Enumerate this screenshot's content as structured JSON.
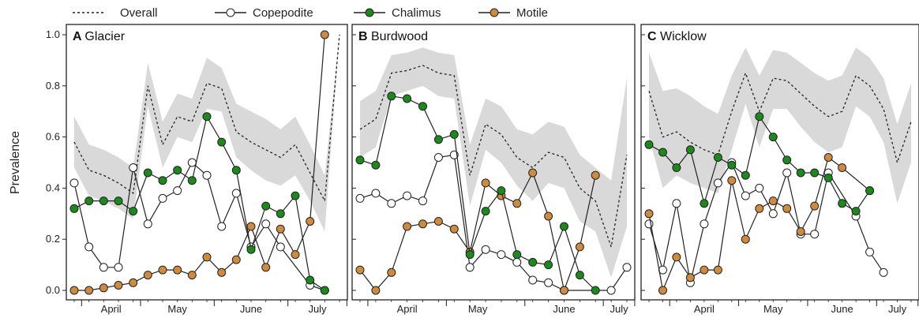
{
  "chart_data": {
    "type": "line",
    "ylabel": "Prevalence",
    "ylim": [
      0,
      1
    ],
    "yticks": [
      "0.0",
      "0.2",
      "0.4",
      "0.6",
      "0.8",
      "1.0"
    ],
    "month_labels": [
      "April",
      "May",
      "June",
      "July"
    ],
    "legend": {
      "placement": "top",
      "entries": [
        {
          "key": "overall",
          "label": "Overall",
          "style": "dotted"
        },
        {
          "key": "copepodite",
          "label": "Copepodite",
          "fill": "#ffffff"
        },
        {
          "key": "chalimus",
          "label": "Chalimus",
          "fill": "#1a8a1a"
        },
        {
          "key": "motile",
          "label": "Motile",
          "fill": "#d08a3c"
        }
      ]
    },
    "colors": {
      "copepodite": "#ffffff",
      "chalimus": "#1a8a1a",
      "motile": "#d08a3c",
      "band": "#d9d9d9",
      "line": "#222222"
    },
    "panels": [
      {
        "letter": "A",
        "name": "Glacier",
        "n": 19,
        "month_ticks": [
          0.5,
          4.5,
          9.5,
          14.5,
          18.5
        ],
        "month_label_pos": [
          2.5,
          7,
          12,
          16.5
        ],
        "overall": [
          0.58,
          0.47,
          0.45,
          0.42,
          0.38,
          0.8,
          0.57,
          0.68,
          0.66,
          0.81,
          0.79,
          0.62,
          0.58,
          0.55,
          0.52,
          0.57,
          0.46,
          0.35,
          1.0
        ],
        "band_upper": [
          0.68,
          0.57,
          0.55,
          0.52,
          0.48,
          0.89,
          0.66,
          0.77,
          0.75,
          0.91,
          0.87,
          0.73,
          0.7,
          0.67,
          0.63,
          0.68,
          0.57,
          0.45,
          1.0
        ],
        "band_lower": [
          0.48,
          0.37,
          0.35,
          0.32,
          0.28,
          0.72,
          0.48,
          0.6,
          0.58,
          0.71,
          0.7,
          0.52,
          0.47,
          0.43,
          0.41,
          0.45,
          0.35,
          0.23,
          1.0
        ],
        "copepodite": [
          0.42,
          0.17,
          0.09,
          0.09,
          0.48,
          0.26,
          0.36,
          0.39,
          0.5,
          0.45,
          0.25,
          0.38,
          0.17,
          0.26,
          0.17,
          0.02,
          0.0
        ],
        "copepodite_x": [
          0,
          1,
          2,
          3,
          4,
          5,
          6,
          7,
          8,
          9,
          10,
          11,
          12,
          13,
          14,
          16,
          17
        ],
        "chalimus": [
          0.32,
          0.35,
          0.35,
          0.35,
          0.31,
          0.46,
          0.43,
          0.47,
          0.43,
          0.68,
          0.58,
          0.47,
          0.16,
          0.33,
          0.3,
          0.37,
          0.04,
          0.0
        ],
        "chalimus_x": [
          0,
          1,
          2,
          3,
          4,
          5,
          6,
          7,
          8,
          9,
          10,
          11,
          12,
          13,
          14,
          15,
          16,
          17
        ],
        "motile": [
          0.0,
          0.0,
          0.01,
          0.02,
          0.03,
          0.06,
          0.08,
          0.08,
          0.06,
          0.13,
          0.07,
          0.12,
          0.25,
          0.09,
          0.24,
          0.14,
          0.27,
          1.0
        ],
        "motile_x": [
          0,
          1,
          2,
          3,
          4,
          5,
          6,
          7,
          8,
          9,
          10,
          11,
          12,
          13,
          14,
          15,
          16,
          17
        ]
      },
      {
        "letter": "B",
        "name": "Burdwood",
        "n": 18,
        "month_ticks": [
          0.5,
          5.5,
          10.5,
          15.5,
          17.5
        ],
        "month_label_pos": [
          3,
          7.5,
          13,
          16.5
        ],
        "overall": [
          0.63,
          0.67,
          0.85,
          0.86,
          0.88,
          0.85,
          0.84,
          0.45,
          0.65,
          0.61,
          0.52,
          0.48,
          0.54,
          0.52,
          0.4,
          0.35,
          0.17,
          0.53
        ],
        "band_upper": [
          0.74,
          0.78,
          0.92,
          0.93,
          0.95,
          0.93,
          0.92,
          0.57,
          0.75,
          0.72,
          0.63,
          0.61,
          0.66,
          0.64,
          0.53,
          0.48,
          0.43,
          0.83
        ],
        "band_lower": [
          0.52,
          0.56,
          0.76,
          0.78,
          0.8,
          0.76,
          0.75,
          0.33,
          0.55,
          0.5,
          0.41,
          0.35,
          0.42,
          0.4,
          0.27,
          0.23,
          0.05,
          0.25
        ],
        "copepodite": [
          0.36,
          0.38,
          0.34,
          0.37,
          0.35,
          0.52,
          0.53,
          0.09,
          0.16,
          0.14,
          0.11,
          0.04,
          0.03,
          0.0,
          0.0,
          0.09
        ],
        "copepodite_x": [
          0,
          1,
          2,
          3,
          4,
          5,
          6,
          7,
          8,
          9,
          10,
          11,
          12,
          13,
          16,
          17
        ],
        "chalimus": [
          0.51,
          0.49,
          0.76,
          0.75,
          0.72,
          0.59,
          0.61,
          0.14,
          0.31,
          0.39,
          0.14,
          0.11,
          0.1,
          0.25,
          0.06,
          0.0
        ],
        "chalimus_x": [
          0,
          1,
          2,
          3,
          4,
          5,
          6,
          7,
          8,
          9,
          10,
          11,
          12,
          13,
          14,
          15
        ],
        "motile": [
          0.08,
          0.0,
          0.07,
          0.25,
          0.26,
          0.27,
          0.24,
          0.15,
          0.42,
          0.37,
          0.34,
          0.46,
          0.29,
          0.0,
          0.17,
          0.45
        ],
        "motile_x": [
          0,
          1,
          2,
          3,
          4,
          5,
          6,
          7,
          8,
          9,
          10,
          11,
          12,
          13,
          14,
          15
        ]
      },
      {
        "letter": "C",
        "name": "Wicklow",
        "n": 20,
        "month_ticks": [
          1.5,
          6.5,
          11.5,
          16.5,
          19.5
        ],
        "month_label_pos": [
          4,
          9,
          14,
          18
        ],
        "overall": [
          0.78,
          0.6,
          0.62,
          0.58,
          0.55,
          0.53,
          0.7,
          0.85,
          0.7,
          0.83,
          0.82,
          0.77,
          0.72,
          0.68,
          0.7,
          0.84,
          0.8,
          0.71,
          0.5,
          0.66
        ],
        "band_upper": [
          0.93,
          0.78,
          0.79,
          0.76,
          0.72,
          0.69,
          0.84,
          0.95,
          0.84,
          0.94,
          0.93,
          0.89,
          0.85,
          0.82,
          0.84,
          0.95,
          0.91,
          0.83,
          0.65,
          0.81
        ],
        "band_lower": [
          0.6,
          0.4,
          0.45,
          0.42,
          0.4,
          0.38,
          0.55,
          0.73,
          0.56,
          0.71,
          0.71,
          0.64,
          0.58,
          0.54,
          0.56,
          0.72,
          0.68,
          0.58,
          0.34,
          0.5
        ],
        "copepodite": [
          0.26,
          0.08,
          0.34,
          0.03,
          0.26,
          0.42,
          0.5,
          0.37,
          0.4,
          0.3,
          0.46,
          0.22,
          0.22,
          0.46,
          0.29,
          0.15,
          0.07
        ],
        "copepodite_x": [
          0,
          1,
          2,
          3,
          4,
          5,
          6,
          7,
          8,
          9,
          10,
          11,
          12,
          13,
          15,
          16,
          17
        ],
        "chalimus": [
          0.57,
          0.54,
          0.48,
          0.55,
          0.34,
          0.52,
          0.49,
          0.45,
          0.68,
          0.6,
          0.51,
          0.46,
          0.46,
          0.44,
          0.34,
          0.31,
          0.39
        ],
        "chalimus_x": [
          0,
          1,
          2,
          3,
          4,
          5,
          6,
          7,
          8,
          9,
          10,
          11,
          12,
          13,
          14,
          15,
          16
        ],
        "motile": [
          0.3,
          0.0,
          0.13,
          0.05,
          0.08,
          0.08,
          0.43,
          0.2,
          0.32,
          0.35,
          0.32,
          0.23,
          0.33,
          0.52,
          0.48,
          0.39
        ],
        "motile_x": [
          0,
          1,
          2,
          3,
          4,
          5,
          6,
          7,
          8,
          9,
          10,
          11,
          12,
          13,
          14,
          16
        ]
      }
    ]
  }
}
